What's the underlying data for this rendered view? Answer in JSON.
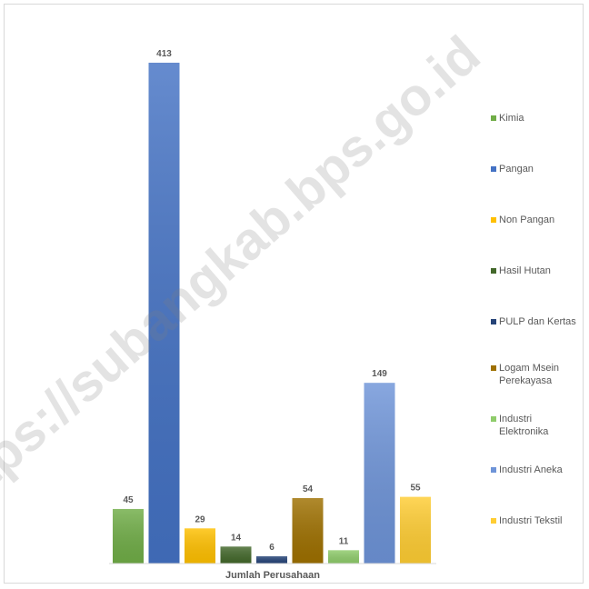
{
  "watermark": "https://subangkab.bps.go.id",
  "chart_data": {
    "type": "bar",
    "title": "",
    "xlabel": "Jumlah Perusahaan",
    "ylabel": "",
    "ylim": [
      0,
      413
    ],
    "grid": false,
    "legend_position": "right",
    "series": [
      {
        "name": "Kimia",
        "value": 45,
        "color": "#70ad47"
      },
      {
        "name": "Pangan",
        "value": 413,
        "color": "#4472c4"
      },
      {
        "name": "Non Pangan",
        "value": 29,
        "color": "#ffc000"
      },
      {
        "name": "Hasil Hutan",
        "value": 14,
        "color": "#43682b"
      },
      {
        "name": "PULP dan Kertas",
        "value": 6,
        "color": "#264478"
      },
      {
        "name": "Logam Msein Perekayasa",
        "value": 54,
        "color": "#9e7000"
      },
      {
        "name": "Industri Elektronika",
        "value": 11,
        "color": "#8fcc6b"
      },
      {
        "name": "Industri Aneka",
        "value": 149,
        "color": "#6e94d8"
      },
      {
        "name": "Industri Tekstil",
        "value": 55,
        "color": "#ffcd33"
      }
    ]
  }
}
